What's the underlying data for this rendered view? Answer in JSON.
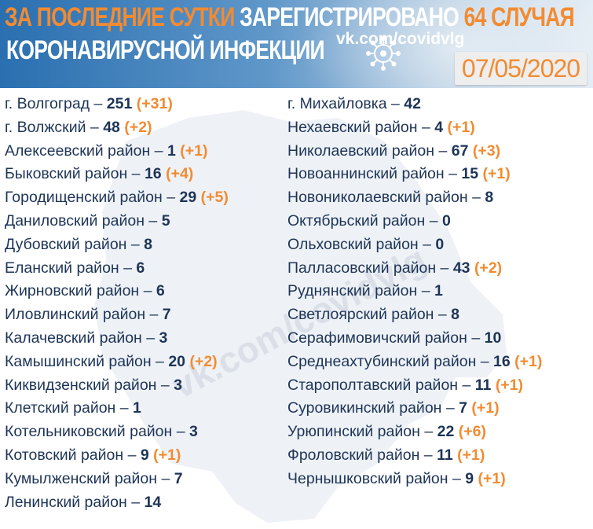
{
  "header": {
    "title_part1": "ЗА ПОСЛЕДНИЕ СУТКИ",
    "title_part2": "ЗАРЕГИСТРИРОВАНО",
    "title_part3": "64 СЛУЧАЯ",
    "title_line2": "КОРОНАВИРУСНОЙ ИНФЕКЦИИ",
    "link": "vk.com/covidvlg",
    "date": "07/05/2020",
    "virus_icon": "virus-icon"
  },
  "watermark": "vk.com/covidvlg",
  "colors": {
    "accent": "#f28b32",
    "text": "#1e3457",
    "header_blue": "#2a6fb0"
  },
  "left_column": [
    {
      "name": "г. Волгоград",
      "value": "251",
      "increase": "(+31)"
    },
    {
      "name": "г. Волжский",
      "value": "48",
      "increase": "(+2)"
    },
    {
      "name": "Алексеевский район",
      "value": "1",
      "increase": "(+1)"
    },
    {
      "name": "Быковский район",
      "value": "16",
      "increase": "(+4)"
    },
    {
      "name": "Городищенский район",
      "value": "29",
      "increase": "(+5)"
    },
    {
      "name": "Даниловский район",
      "value": "5",
      "increase": ""
    },
    {
      "name": "Дубовский район",
      "value": "8",
      "increase": ""
    },
    {
      "name": "Еланский район",
      "value": "6",
      "increase": ""
    },
    {
      "name": "Жирновский район",
      "value": "6",
      "increase": ""
    },
    {
      "name": "Иловлинский район",
      "value": "7",
      "increase": ""
    },
    {
      "name": "Калачевский район",
      "value": "3",
      "increase": ""
    },
    {
      "name": "Камышинский район",
      "value": "20",
      "increase": "(+2)"
    },
    {
      "name": "Киквидзенский район",
      "value": "3",
      "increase": ""
    },
    {
      "name": "Клетский район",
      "value": "1",
      "increase": ""
    },
    {
      "name": "Котельниковский район",
      "value": "3",
      "increase": ""
    },
    {
      "name": "Котовский район",
      "value": "9",
      "increase": "(+1)"
    },
    {
      "name": "Кумылженский район",
      "value": "7",
      "increase": ""
    },
    {
      "name": "Ленинский район",
      "value": "14",
      "increase": ""
    }
  ],
  "right_column": [
    {
      "name": "г. Михайловка",
      "value": "42",
      "increase": ""
    },
    {
      "name": "Нехаевский район",
      "value": "4",
      "increase": "(+1)"
    },
    {
      "name": "Николаевский район",
      "value": "67",
      "increase": "(+3)"
    },
    {
      "name": "Новоаннинский район",
      "value": "15",
      "increase": "(+1)"
    },
    {
      "name": "Новониколаевский район",
      "value": "8",
      "increase": ""
    },
    {
      "name": "Октябрьский район",
      "value": "0",
      "increase": ""
    },
    {
      "name": "Ольховский район",
      "value": "0",
      "increase": ""
    },
    {
      "name": "Палласовский район",
      "value": "43",
      "increase": "(+2)"
    },
    {
      "name": "Руднянский район",
      "value": "1",
      "increase": ""
    },
    {
      "name": "Светлоярский район",
      "value": "8",
      "increase": ""
    },
    {
      "name": "Серафимовичский район",
      "value": "10",
      "increase": ""
    },
    {
      "name": "Среднеахтубинский район",
      "value": "16",
      "increase": "(+1)"
    },
    {
      "name": "Старополтавский район",
      "value": "11",
      "increase": "(+1)"
    },
    {
      "name": "Суровикинский район",
      "value": "7",
      "increase": "(+1)"
    },
    {
      "name": "Урюпинский район",
      "value": "22",
      "increase": "(+6)"
    },
    {
      "name": "Фроловский район",
      "value": "11",
      "increase": "(+1)"
    },
    {
      "name": "Чернышковский район",
      "value": "9",
      "increase": "(+1)"
    }
  ],
  "separator": "–"
}
